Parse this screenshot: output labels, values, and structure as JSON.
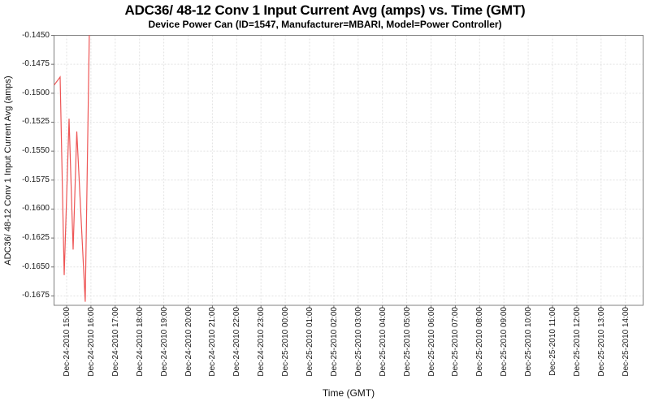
{
  "chart_data": {
    "type": "line",
    "title": "ADC36/ 48-12 Conv 1 Input Current Avg (amps) vs. Time (GMT)",
    "subtitle": "Device Power Can (ID=1547, Manufacturer=MBARI, Model=Power Controller)",
    "xlabel": "Time (GMT)",
    "ylabel": "ADC36/ 48-12 Conv 1 Input Current Avg (amps)",
    "legend_position": "none",
    "grid": true,
    "grid_style": "dashed",
    "colors": {
      "series_line": "#ee5555",
      "grid_line": "#e2e2e2",
      "plot_border": "#808080",
      "tick_mark": "#707070",
      "background": "#ffffff"
    },
    "ylim": [
      -0.1683,
      -0.145
    ],
    "y_tick_step": 0.0025,
    "y_tick_labels": [
      "-0.1450",
      "-0.1475",
      "-0.1500",
      "-0.1525",
      "-0.1550",
      "-0.1575",
      "-0.1600",
      "-0.1625",
      "-0.1650",
      "-0.1675"
    ],
    "x_tick_labels": [
      "Dec-24-2010 15:00",
      "Dec-24-2010 16:00",
      "Dec-24-2010 17:00",
      "Dec-24-2010 18:00",
      "Dec-24-2010 19:00",
      "Dec-24-2010 20:00",
      "Dec-24-2010 21:00",
      "Dec-24-2010 22:00",
      "Dec-24-2010 23:00",
      "Dec-25-2010 00:00",
      "Dec-25-2010 01:00",
      "Dec-25-2010 02:00",
      "Dec-25-2010 03:00",
      "Dec-25-2010 04:00",
      "Dec-25-2010 05:00",
      "Dec-25-2010 06:00",
      "Dec-25-2010 07:00",
      "Dec-25-2010 08:00",
      "Dec-25-2010 09:00",
      "Dec-25-2010 10:00",
      "Dec-25-2010 11:00",
      "Dec-25-2010 12:00",
      "Dec-25-2010 13:00",
      "Dec-25-2010 14:00"
    ],
    "xlim_minutes_from_first_tick": [
      -31,
      1424
    ],
    "series": [
      {
        "points": [
          {
            "t": "Dec-24-2010 14:29",
            "m": -31,
            "v": -0.1493
          },
          {
            "t": "Dec-24-2010 14:44",
            "m": -16,
            "v": -0.1486
          },
          {
            "t": "Dec-24-2010 14:54",
            "m": -6,
            "v": -0.1657
          },
          {
            "t": "Dec-24-2010 15:06",
            "m": 6,
            "v": -0.1522
          },
          {
            "t": "Dec-24-2010 15:16",
            "m": 16,
            "v": -0.1635
          },
          {
            "t": "Dec-24-2010 15:25",
            "m": 25,
            "v": -0.1533
          },
          {
            "t": "Dec-24-2010 15:46",
            "m": 46,
            "v": -0.168
          },
          {
            "t": "Dec-24-2010 15:56",
            "m": 56,
            "v": -0.145
          }
        ]
      }
    ]
  }
}
